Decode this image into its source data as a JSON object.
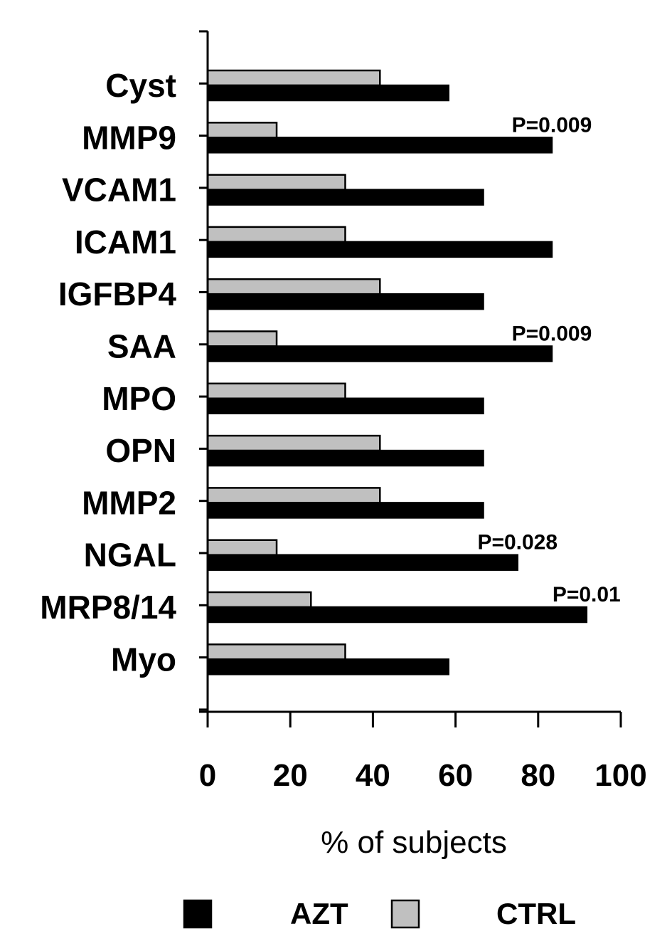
{
  "chart_data": {
    "type": "bar",
    "orientation": "horizontal",
    "categories": [
      "Cyst",
      "MMP9",
      "VCAM1",
      "ICAM1",
      "IGFBP4",
      "SAA",
      "MPO",
      "OPN",
      "MMP2",
      "NGAL",
      "MRP8/14",
      "Myo"
    ],
    "series": [
      {
        "name": "CTRL",
        "color": "#c0c0c0",
        "values": [
          41.7,
          16.7,
          33.3,
          33.3,
          41.7,
          16.7,
          33.3,
          41.7,
          41.7,
          16.7,
          25.0,
          33.3
        ]
      },
      {
        "name": "AZT",
        "color": "#000000",
        "values": [
          58.3,
          83.3,
          66.7,
          83.3,
          66.7,
          83.3,
          66.7,
          66.7,
          66.7,
          75.0,
          91.7,
          58.3
        ]
      }
    ],
    "annotations": [
      {
        "category": "MMP9",
        "text": "P=0.009"
      },
      {
        "category": "SAA",
        "text": "P=0.009"
      },
      {
        "category": "NGAL",
        "text": "P=0.028"
      },
      {
        "category": "MRP8/14",
        "text": "P=0.01"
      }
    ],
    "xlabel": "% of subjects",
    "xlim": [
      0,
      100
    ],
    "xticks": [
      "0",
      "20",
      "40",
      "60",
      "80",
      "100"
    ],
    "grid": false,
    "legend": {
      "position": "bottom",
      "entries": [
        "AZT",
        "CTRL"
      ]
    }
  }
}
